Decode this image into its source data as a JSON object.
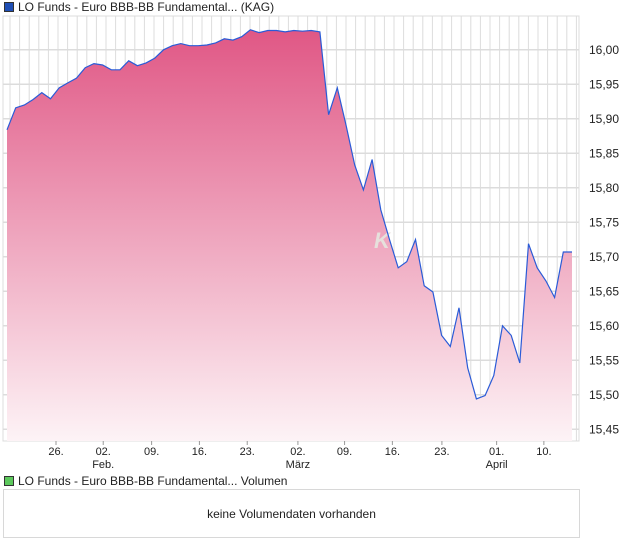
{
  "price_legend": {
    "label": "LO Funds - Euro BBB-BB Fundamental... (KAG)",
    "color": "#1f4fb5"
  },
  "volume_legend": {
    "label": "LO Funds - Euro BBB-BB Fundamental... Volumen",
    "color": "#5cc85c"
  },
  "volume_message": "keine Volumendaten vorhanden",
  "colors": {
    "line": "#2a5bd7",
    "fill_top": "#e05785",
    "fill_bottom": "#fdf3f6",
    "grid": "#dcdcdc"
  },
  "chart_data": {
    "type": "area",
    "title": "LO Funds - Euro BBB-BB Fundamental... (KAG)",
    "ylim": [
      15.433,
      16.049
    ],
    "y_ticks": [
      {
        "value": 16.0,
        "label": "16,00"
      },
      {
        "value": 15.95,
        "label": "15,95"
      },
      {
        "value": 15.9,
        "label": "15,90"
      },
      {
        "value": 15.85,
        "label": "15,85"
      },
      {
        "value": 15.8,
        "label": "15,80"
      },
      {
        "value": 15.75,
        "label": "15,75"
      },
      {
        "value": 15.7,
        "label": "15,70"
      },
      {
        "value": 15.65,
        "label": "15,65"
      },
      {
        "value": 15.6,
        "label": "15,60"
      },
      {
        "value": 15.55,
        "label": "15,55"
      },
      {
        "value": 15.5,
        "label": "15,50"
      },
      {
        "value": 15.45,
        "label": "15,45"
      }
    ],
    "x_ticks": [
      {
        "label": "26.",
        "month": "",
        "pos": 0.092
      },
      {
        "label": "02.",
        "month": "Feb.",
        "pos": 0.174
      },
      {
        "label": "09.",
        "month": "",
        "pos": 0.258
      },
      {
        "label": "16.",
        "month": "",
        "pos": 0.341
      },
      {
        "label": "23.",
        "month": "",
        "pos": 0.424
      },
      {
        "label": "02.",
        "month": "März",
        "pos": 0.512
      },
      {
        "label": "09.",
        "month": "",
        "pos": 0.593
      },
      {
        "label": "16.",
        "month": "",
        "pos": 0.676
      },
      {
        "label": "23.",
        "month": "",
        "pos": 0.762
      },
      {
        "label": "01.",
        "month": "April",
        "pos": 0.857
      },
      {
        "label": "10.",
        "month": "",
        "pos": 0.939
      }
    ],
    "values": [
      15.884,
      15.916,
      15.92,
      15.928,
      15.938,
      15.929,
      15.945,
      15.952,
      15.959,
      15.974,
      15.98,
      15.978,
      15.971,
      15.971,
      15.984,
      15.977,
      15.981,
      15.988,
      16.0,
      16.006,
      16.009,
      16.006,
      16.006,
      16.007,
      16.01,
      16.016,
      16.014,
      16.019,
      16.029,
      16.025,
      16.028,
      16.028,
      16.026,
      16.028,
      16.027,
      16.028,
      16.026,
      15.906,
      15.945,
      15.891,
      15.833,
      15.797,
      15.841,
      15.768,
      15.725,
      15.684,
      15.693,
      15.725,
      15.658,
      15.649,
      15.586,
      15.57,
      15.626,
      15.539,
      15.494,
      15.499,
      15.528,
      15.6,
      15.586,
      15.546,
      15.719,
      15.684,
      15.665,
      15.641,
      15.707,
      15.707
    ],
    "grid": true
  }
}
